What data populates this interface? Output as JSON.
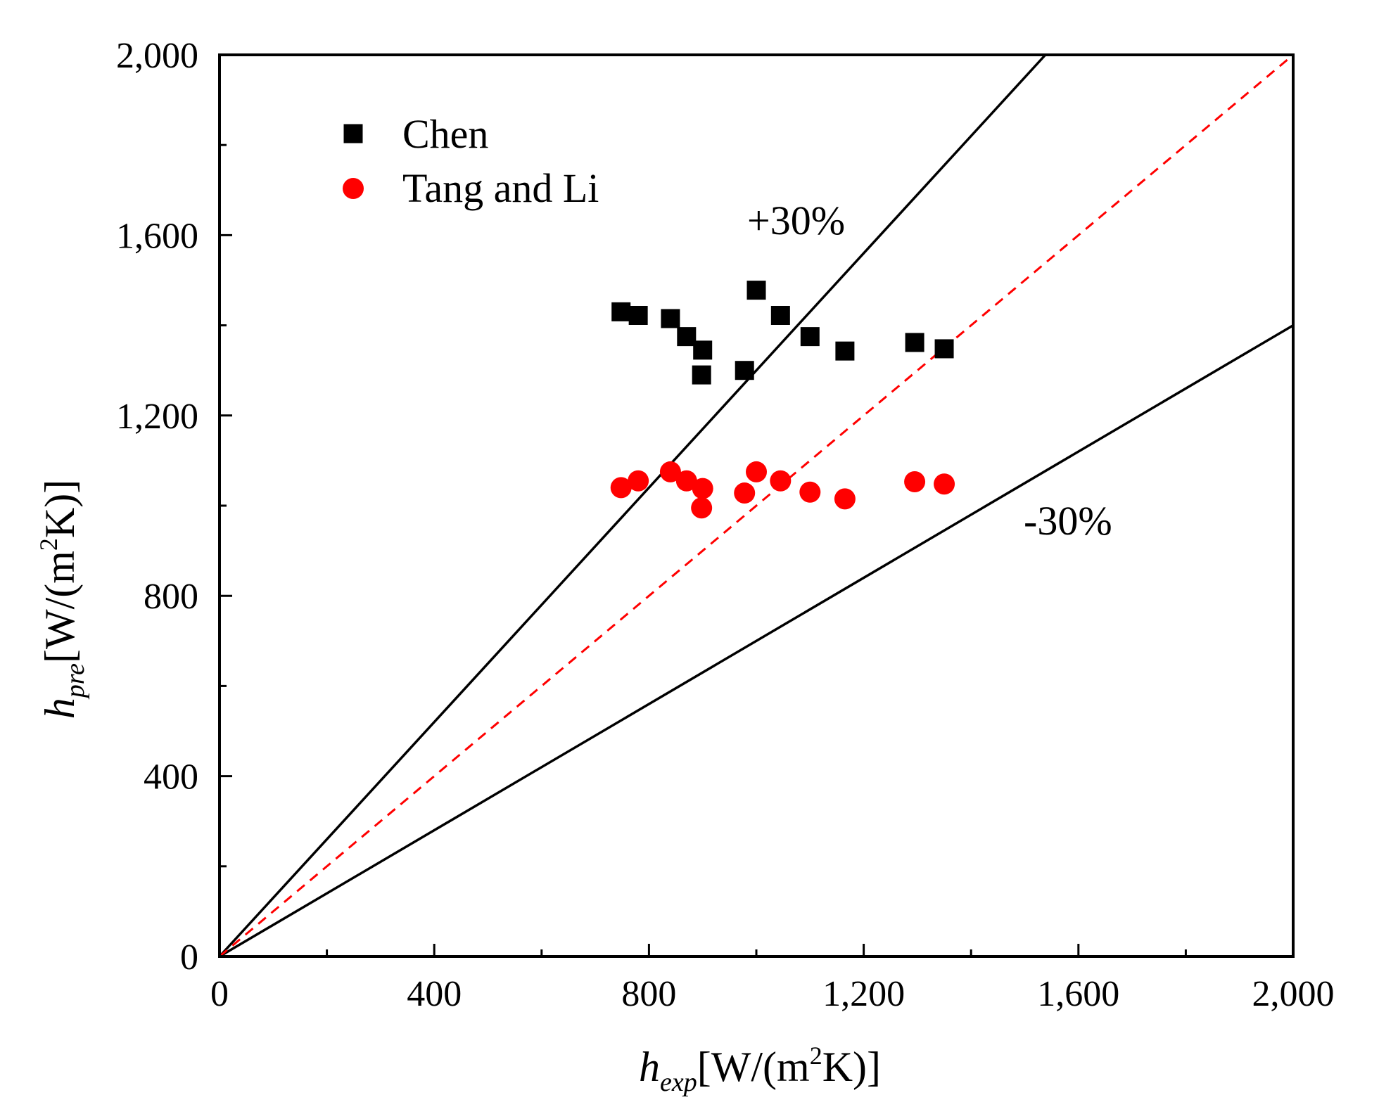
{
  "chart_data": {
    "type": "scatter",
    "x_axis": {
      "label_main": "h",
      "label_sub": "exp",
      "label_unit_prefix": "[W/(m",
      "label_unit_sup": "2",
      "label_unit_suffix": "K)]",
      "range": [
        0,
        2000
      ],
      "ticks": [
        0,
        400,
        800,
        1200,
        1600,
        2000
      ],
      "tick_labels": [
        "0",
        "400",
        "800",
        "1,200",
        "1,600",
        "2,000"
      ]
    },
    "y_axis": {
      "label_main": "h",
      "label_sub": "pre",
      "label_unit_prefix": "[W/(m",
      "label_unit_sup": "2",
      "label_unit_suffix": "K)]",
      "range": [
        0,
        2000
      ],
      "ticks": [
        0,
        400,
        800,
        1200,
        1600,
        2000
      ],
      "tick_labels": [
        "0",
        "400",
        "800",
        "1,200",
        "1,600",
        "2,000"
      ]
    },
    "grid": false,
    "legend_position": "top-left",
    "series": [
      {
        "name": "Chen",
        "marker": "square",
        "color": "#000000",
        "x": [
          748,
          780,
          840,
          870,
          900,
          898,
          978,
          1000,
          1045,
          1100,
          1165,
          1295,
          1350
        ],
        "y": [
          1430,
          1422,
          1415,
          1375,
          1345,
          1290,
          1300,
          1478,
          1422,
          1375,
          1343,
          1362,
          1348
        ]
      },
      {
        "name": "Tang and Li",
        "marker": "circle",
        "color": "#ff0000",
        "x": [
          748,
          780,
          840,
          870,
          900,
          898,
          978,
          1000,
          1045,
          1100,
          1165,
          1295,
          1350
        ],
        "y": [
          1040,
          1055,
          1075,
          1055,
          1038,
          995,
          1028,
          1075,
          1055,
          1030,
          1015,
          1053,
          1048
        ]
      }
    ],
    "reference_lines": [
      {
        "name": "plus-30",
        "slope": 1.3,
        "style": "solid",
        "color": "#000000",
        "label": "+30%"
      },
      {
        "name": "minus-30",
        "slope": 0.7,
        "style": "solid",
        "color": "#000000",
        "label": "-30%"
      },
      {
        "name": "parity",
        "slope": 1.0,
        "style": "dashed",
        "color": "#ff0000"
      }
    ]
  }
}
